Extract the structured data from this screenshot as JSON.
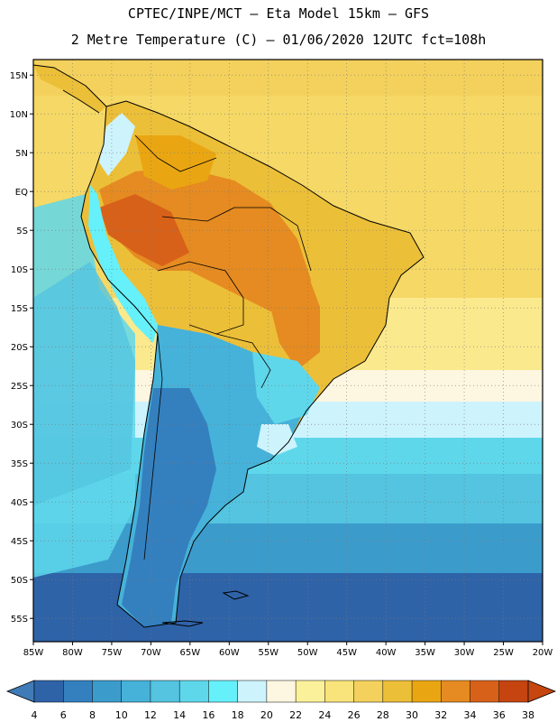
{
  "title": {
    "line1": "CPTEC/INPE/MCT –  Eta Model 15km – GFS",
    "line2": "2 Metre Temperature (C) – 01/06/2020 12UTC fct=108h"
  },
  "map": {
    "region": "South America",
    "lon_range": [
      -85,
      -20
    ],
    "lat_range": [
      -58,
      17
    ],
    "lat_labels": [
      {
        "lat": 15,
        "label": "15N"
      },
      {
        "lat": 10,
        "label": "10N"
      },
      {
        "lat": 5,
        "label": "5N"
      },
      {
        "lat": 0,
        "label": "EQ"
      },
      {
        "lat": -5,
        "label": "5S"
      },
      {
        "lat": -10,
        "label": "10S"
      },
      {
        "lat": -15,
        "label": "15S"
      },
      {
        "lat": -20,
        "label": "20S"
      },
      {
        "lat": -25,
        "label": "25S"
      },
      {
        "lat": -30,
        "label": "30S"
      },
      {
        "lat": -35,
        "label": "35S"
      },
      {
        "lat": -40,
        "label": "40S"
      },
      {
        "lat": -45,
        "label": "45S"
      },
      {
        "lat": -50,
        "label": "50S"
      },
      {
        "lat": -55,
        "label": "55S"
      }
    ],
    "lon_labels": [
      {
        "lon": -85,
        "label": "85W"
      },
      {
        "lon": -80,
        "label": "80W"
      },
      {
        "lon": -75,
        "label": "75W"
      },
      {
        "lon": -70,
        "label": "70W"
      },
      {
        "lon": -65,
        "label": "65W"
      },
      {
        "lon": -60,
        "label": "60W"
      },
      {
        "lon": -55,
        "label": "55W"
      },
      {
        "lon": -50,
        "label": "50W"
      },
      {
        "lon": -45,
        "label": "45W"
      },
      {
        "lon": -40,
        "label": "40W"
      },
      {
        "lon": -35,
        "label": "35W"
      },
      {
        "lon": -30,
        "label": "30W"
      },
      {
        "lon": -25,
        "label": "25W"
      },
      {
        "lon": -20,
        "label": "20W"
      }
    ]
  },
  "colorbar": {
    "labels": [
      "4",
      "6",
      "8",
      "10",
      "12",
      "14",
      "16",
      "18",
      "20",
      "22",
      "24",
      "26",
      "28",
      "30",
      "32",
      "34",
      "36",
      "38"
    ],
    "colors": [
      "#2f63a8",
      "#3480bf",
      "#3b9ccc",
      "#46b2d9",
      "#54c4e0",
      "#5fd7eb",
      "#66f0fa",
      "#cdf3fd",
      "#fdf6e0",
      "#fbf19a",
      "#f8e47a",
      "#f3d15c",
      "#ecbf38",
      "#eaa612",
      "#e58b21",
      "#d8611a",
      "#c54410"
    ],
    "left_arrow_color": "#3f7bb6",
    "right_arrow_color": "#c7450f"
  }
}
